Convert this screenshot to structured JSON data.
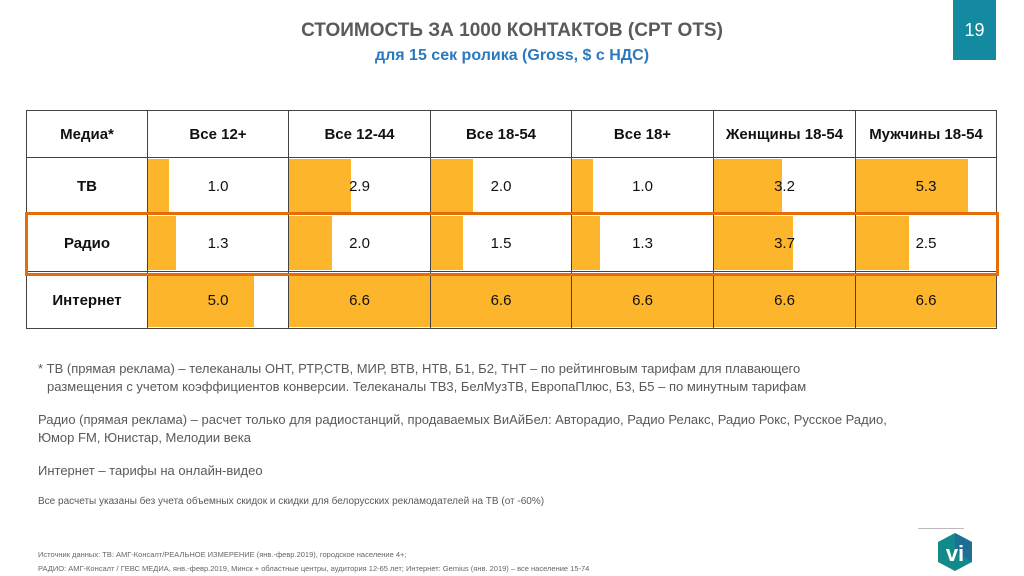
{
  "header": {
    "title": "СТОИМОСТЬ ЗА 1000 КОНТАКТОВ (CPT OTS)",
    "subtitle": "для 15 сек ролика (Gross, $ с НДС)",
    "page_number": "19"
  },
  "colors": {
    "bar": "#fdb52b",
    "highlight": "#e46c0a",
    "accent": "#148aa0",
    "subtitle": "#2b79bf"
  },
  "table": {
    "max_value": 6.6,
    "columns": [
      "Медиа*",
      "Все 12+",
      "Все 12-44",
      "Все 18-54",
      "Все 18+",
      "Женщины 18-54",
      "Мужчины 18-54"
    ],
    "rows": [
      {
        "media": "ТВ",
        "values": [
          "1.0",
          "2.9",
          "2.0",
          "1.0",
          "3.2",
          "5.3"
        ]
      },
      {
        "media": "Радио",
        "values": [
          "1.3",
          "2.0",
          "1.5",
          "1.3",
          "3.7",
          "2.5"
        ],
        "highlighted": true
      },
      {
        "media": "Интернет",
        "values": [
          "5.0",
          "6.6",
          "6.6",
          "6.6",
          "6.6",
          "6.6"
        ]
      }
    ]
  },
  "notes": {
    "tv_line1": "* ТВ (прямая реклама) – телеканалы ОНТ, РТР,СТВ, МИР, ВТВ, НТВ, Б1, Б2, ТНТ – по рейтинговым тарифам для плавающего",
    "tv_line2": "размещения с учетом коэффициентов конверсии.  Телеканалы ТВ3, БелМузТВ, ЕвропаПлюс, Б3, Б5 – по минутным тарифам",
    "radio_line1": "Радио (прямая реклама) – расчет только для радиостанций, продаваемых ВиАйБел: Авторадио, Радио Релакс, Радио Рокс, Русское Радио,",
    "radio_line2": "Юмор FM, Юнистар, Мелодии века",
    "internet": "Интернет – тарифы на онлайн-видео",
    "disclaimer": "Все расчеты указаны без учета объемных скидок и скидки для белорусских рекламодателей на ТВ (от -60%)"
  },
  "source": {
    "line1": "Источник данных: ТВ: АМГ-Консалт/РЕАЛЬНОЕ ИЗМЕРЕНИЕ (янв.-февр.2019), городское население 4+;",
    "line2": "РАДИО: АМГ-Консалт / ГЕВС МЕДИА, янв.-февр.2019, Минск + областные центры, аудитория 12-65 лет; Интернет: Gemius (янв. 2019) – все население 15-74"
  },
  "logo": {
    "text": "vi",
    "icon": "vi-hexagon-logo"
  }
}
